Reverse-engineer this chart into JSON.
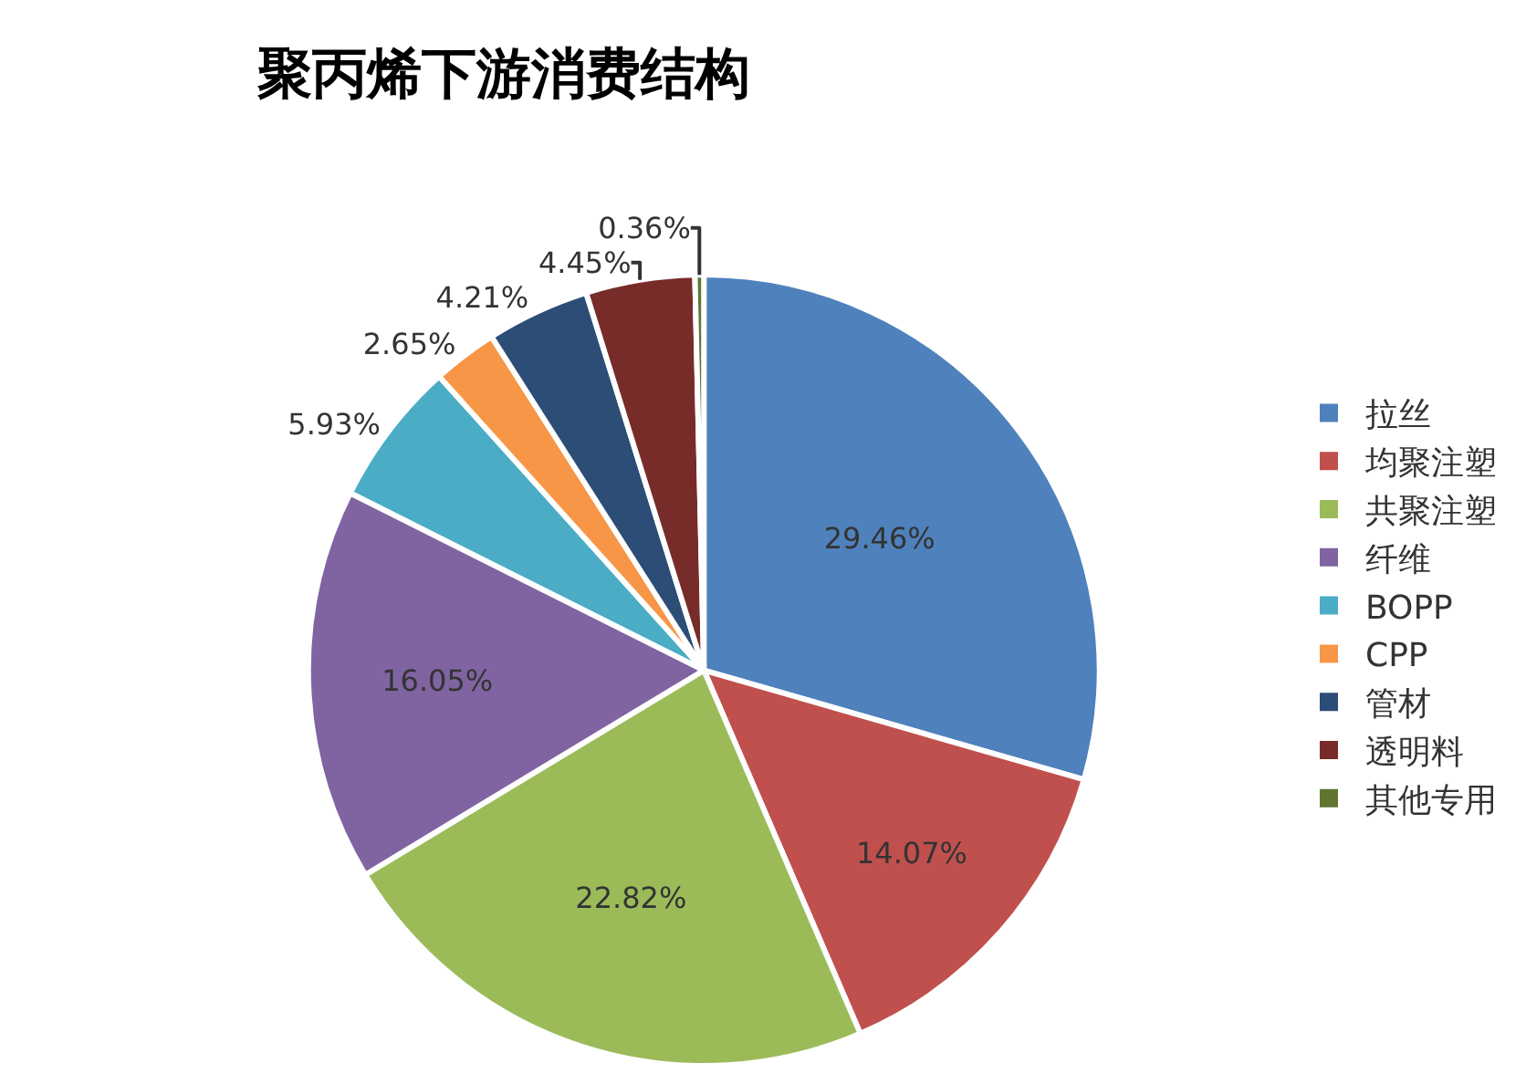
{
  "chart_data": {
    "type": "pie",
    "title": "聚丙烯下游消费结构",
    "categories": [
      "拉丝",
      "均聚注塑",
      "共聚注塑",
      "纤维",
      "BOPP",
      "CPP",
      "管材",
      "透明料",
      "其他专用"
    ],
    "values": [
      29.46,
      14.07,
      22.82,
      16.05,
      5.93,
      2.65,
      4.21,
      4.45,
      0.36
    ],
    "colors": [
      "#4f81bd",
      "#c0504d",
      "#9bbb59",
      "#8064a2",
      "#4bacc6",
      "#f79646",
      "#2c4d75",
      "#772c2a",
      "#5f7530"
    ],
    "value_labels": [
      "29.46%",
      "14.07%",
      "22.82%",
      "16.05%",
      "5.93%",
      "2.65%",
      "4.21%",
      "4.45%",
      "0.36%"
    ],
    "legend": "right"
  }
}
